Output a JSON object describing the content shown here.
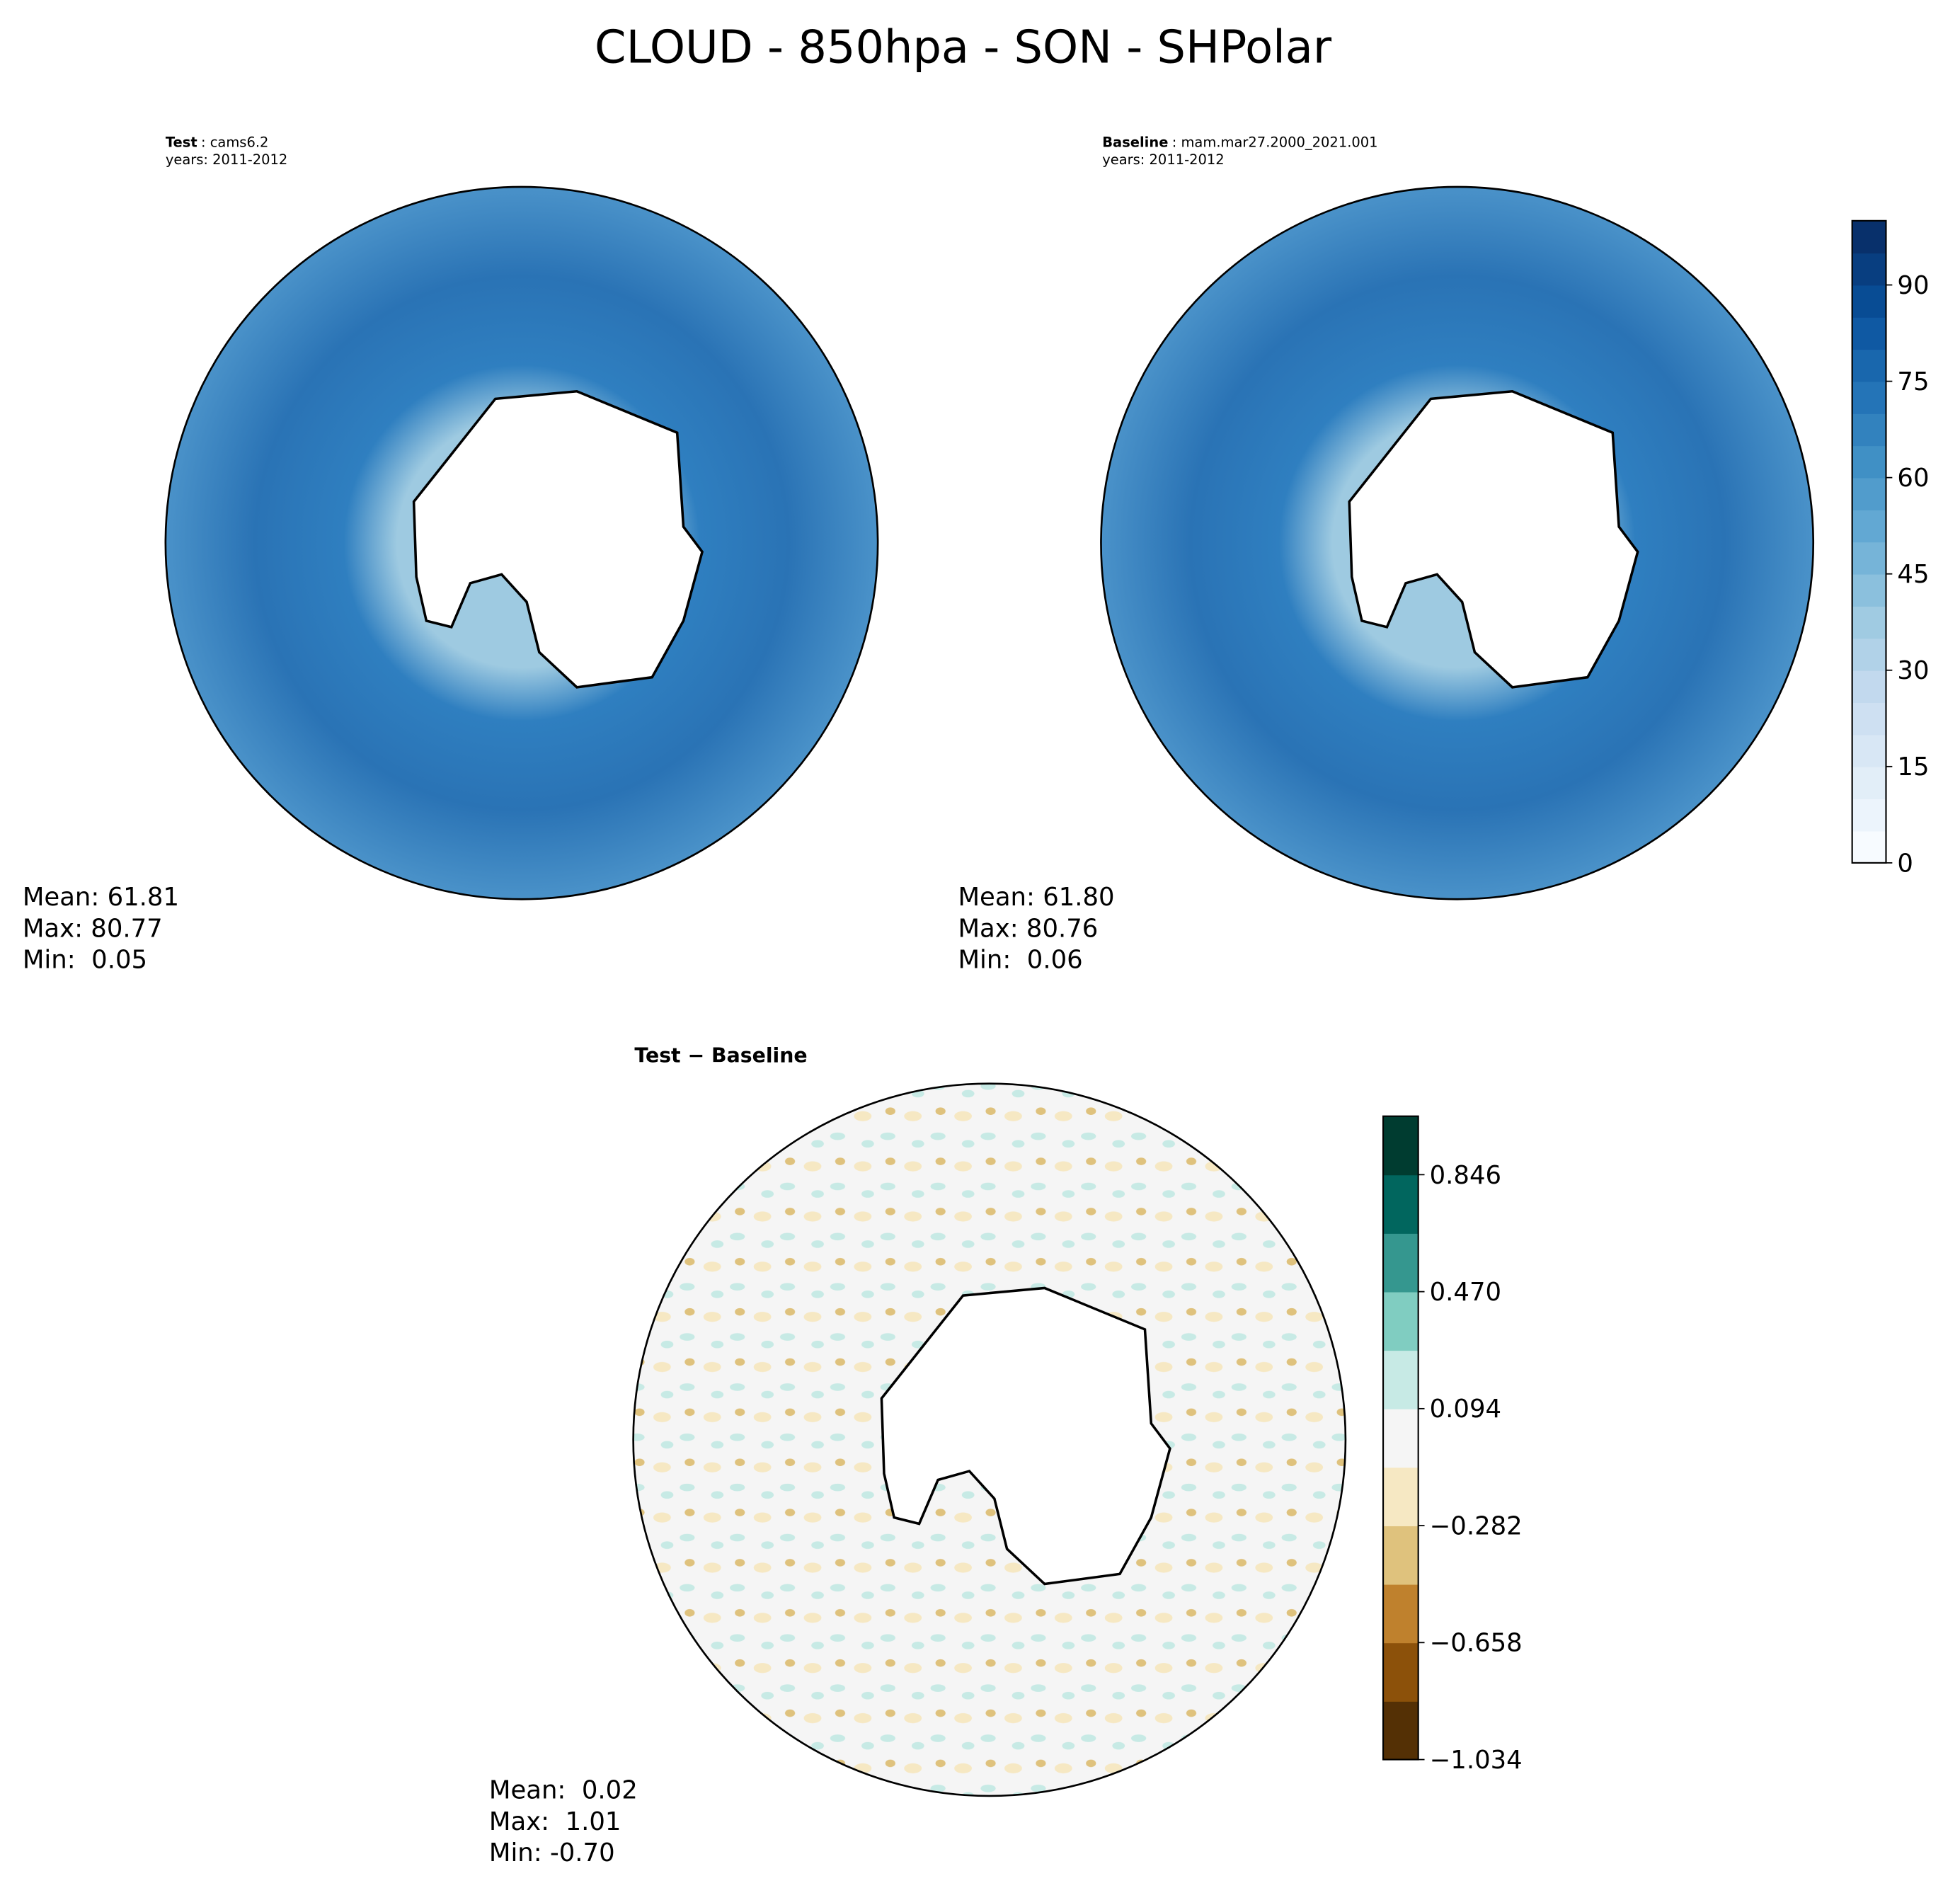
{
  "title": "CLOUD - 850hpa - SON - SHPolar",
  "panels": [
    {
      "title_bold": "Test",
      "title_rest": ": cams6.2",
      "years": "years: 2011-2012",
      "stats": [
        "Mean: 61.81",
        "Max: 80.77",
        "Min:  0.05"
      ]
    },
    {
      "title_bold": "Baseline",
      "title_rest": ": mam.mar27.2000_2021.001",
      "years": "years: 2011-2012",
      "stats": [
        "Mean: 61.80",
        "Max: 80.76",
        "Min:  0.06"
      ]
    },
    {
      "title_bold": "Test − Baseline",
      "stats": [
        "Mean:  0.02",
        "Max:  1.01",
        "Min: -0.70"
      ]
    }
  ],
  "colorbars": [
    {
      "lim": [
        0,
        100
      ],
      "ticks": [
        0,
        15,
        30,
        45,
        60,
        75,
        90
      ],
      "levels": 20,
      "colors": [
        "#f7fbff",
        "#deebf7",
        "#c6dbef",
        "#9ecae1",
        "#6baed6",
        "#4292c6",
        "#2171b5",
        "#08519c",
        "#08306b"
      ]
    },
    {
      "lim": [
        -1.034,
        1.034
      ],
      "ticks": [
        {
          "value": -1.034,
          "label": "−1.034"
        },
        {
          "value": -0.658,
          "label": "−0.658"
        },
        {
          "value": -0.282,
          "label": "−0.282"
        },
        0.094,
        {
          "value": 0.47,
          "label": "0.470"
        },
        0.846
      ],
      "levels": 11,
      "colors": [
        "#543005",
        "#8c510a",
        "#bf812d",
        "#dfc27d",
        "#f6e8c3",
        "#f5f5f5",
        "#c7eae5",
        "#80cdc1",
        "#35978f",
        "#01665e",
        "#003c30"
      ]
    }
  ]
}
